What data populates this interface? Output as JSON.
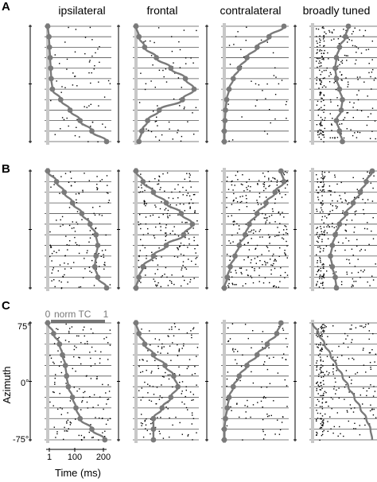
{
  "figure": {
    "column_titles": [
      "ipsilateral",
      "frontal",
      "contralateral",
      "broadly tuned"
    ],
    "row_labels": [
      "A",
      "B",
      "C"
    ],
    "norm_tc": {
      "label": "norm TC",
      "min_label": "0",
      "max_label": "1"
    },
    "y_axis": {
      "title": "Azimuth",
      "ticks": [
        "75°",
        "0°",
        "-75°"
      ]
    },
    "x_axis": {
      "title": "Time (ms)",
      "ticks": [
        "1",
        "100",
        "200"
      ]
    },
    "colors": {
      "curve": "#7a7a7a",
      "stimulus_bar": "#c8c8c8",
      "raster": "#000000",
      "row_line": "#555555",
      "normtc_bar": "#777777"
    }
  },
  "chart_data": {
    "type": "raster-tuning-grid",
    "azimuth_ticks_deg": [
      75,
      0,
      -75
    ],
    "time_ticks_ms": [
      1,
      100,
      200
    ],
    "norm_tc_range": [
      0,
      1
    ],
    "tuning_curves": {
      "A": {
        "ipsilateral": [
          0.0,
          0.02,
          0.03,
          0.04,
          0.05,
          0.06,
          0.08,
          0.22,
          0.38,
          0.55,
          0.75,
          1.0
        ],
        "frontal": [
          0.0,
          0.05,
          0.15,
          0.35,
          0.6,
          0.85,
          1.0,
          0.8,
          0.4,
          0.2,
          0.1,
          0.05
        ],
        "contralateral": [
          1.0,
          0.75,
          0.55,
          0.38,
          0.25,
          0.15,
          0.08,
          0.04,
          0.02,
          0.01,
          0.0,
          0.0
        ],
        "broadly_tuned": [
          0.6,
          0.55,
          0.45,
          0.4,
          0.38,
          0.4,
          0.45,
          0.5,
          0.48,
          0.4,
          0.45,
          0.5
        ]
      },
      "B": {
        "ipsilateral": [
          0.0,
          0.15,
          0.28,
          0.42,
          0.58,
          0.72,
          0.82,
          0.85,
          0.82,
          0.8,
          0.85,
          1.0
        ],
        "frontal": [
          0.0,
          0.12,
          0.3,
          0.52,
          0.78,
          0.97,
          0.82,
          0.52,
          0.3,
          0.12,
          0.05,
          0.0
        ],
        "contralateral": [
          0.95,
          1.0,
          0.85,
          0.7,
          0.55,
          0.42,
          0.35,
          0.25,
          0.18,
          0.1,
          0.05,
          0.0
        ],
        "broadly_tuned": [
          1.0,
          0.9,
          0.8,
          0.68,
          0.56,
          0.45,
          0.38,
          0.33,
          0.3,
          0.33,
          0.38,
          0.4
        ]
      },
      "C": {
        "ipsilateral": [
          0.0,
          0.1,
          0.2,
          0.25,
          0.3,
          0.32,
          0.35,
          0.42,
          0.48,
          0.55,
          0.75,
          0.97
        ],
        "frontal": [
          0.0,
          0.05,
          0.15,
          0.3,
          0.5,
          0.65,
          0.72,
          0.6,
          0.45,
          0.3,
          0.3,
          0.3
        ],
        "contralateral": [
          0.95,
          0.88,
          0.72,
          0.55,
          0.38,
          0.25,
          0.15,
          0.08,
          0.05,
          0.02,
          0.0,
          0.0
        ],
        "broadly_tuned": [
          0.0,
          0.1,
          0.2,
          0.3,
          0.4,
          0.5,
          0.6,
          0.7,
          0.8,
          0.9,
          0.97,
          1.0
        ]
      }
    },
    "raster_density": {
      "A": [
        0.25,
        0.25,
        0.15,
        1.0
      ],
      "B": [
        0.55,
        0.8,
        1.0,
        1.0
      ],
      "C": [
        0.55,
        0.6,
        0.35,
        1.0
      ]
    }
  }
}
